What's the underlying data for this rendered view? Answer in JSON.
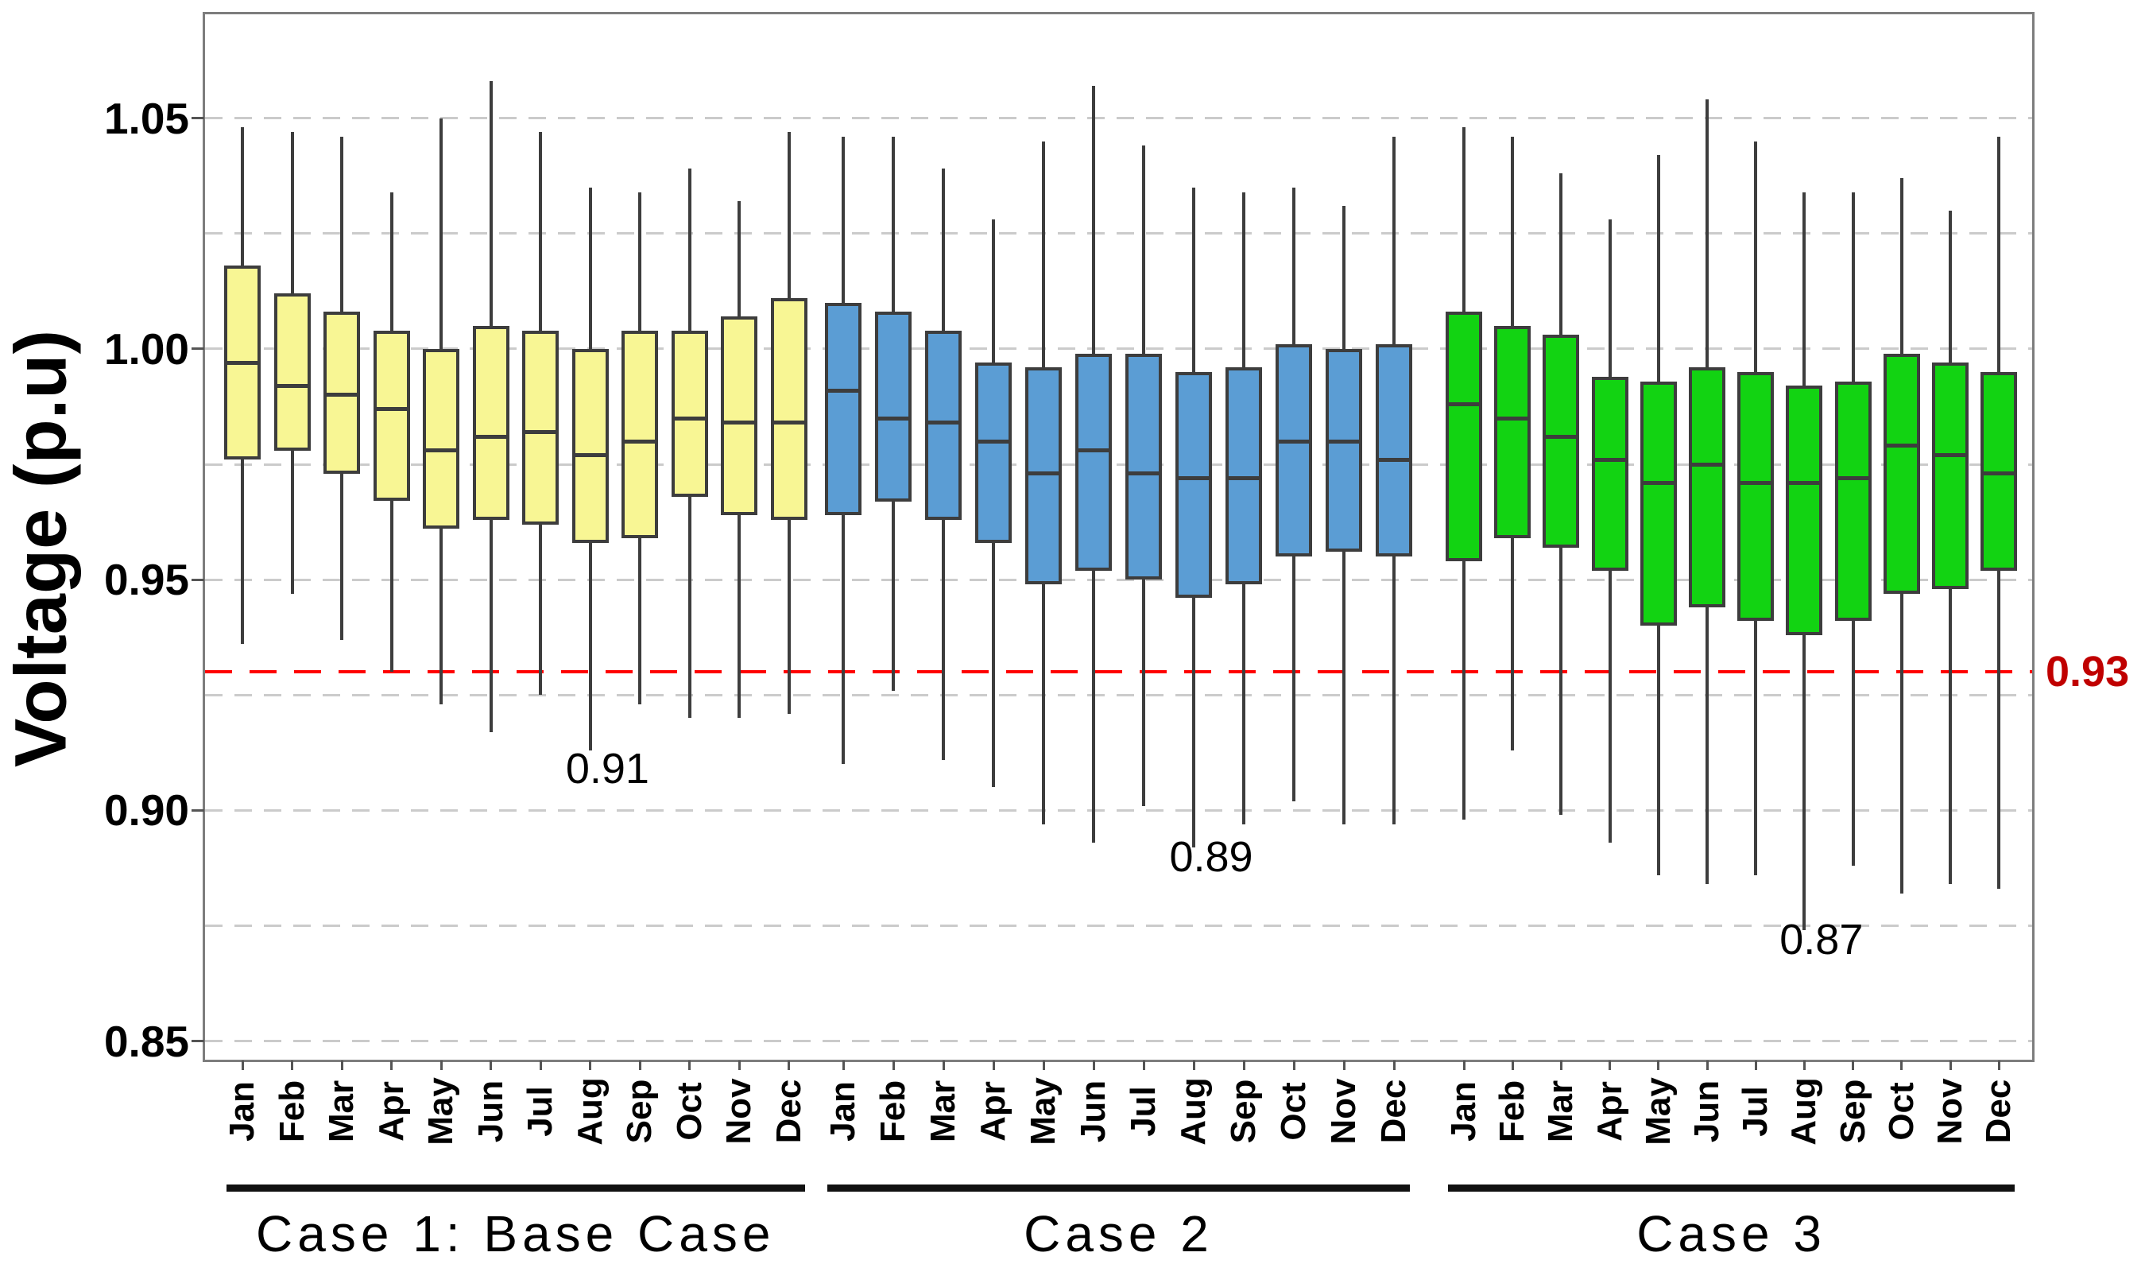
{
  "chart_data": {
    "type": "box",
    "title": "",
    "ylabel": "Voltage (p.u)",
    "ylim": [
      0.846,
      1.0725
    ],
    "grid": true,
    "gridlines": [
      1.05,
      1.025,
      1.0,
      0.975,
      0.95,
      0.925,
      0.9,
      0.875,
      0.85
    ],
    "yticks": [
      {
        "label": "1.05",
        "value": 1.05
      },
      {
        "label": "1.00",
        "value": 1.0
      },
      {
        "label": "0.95",
        "value": 0.95
      },
      {
        "label": "0.90",
        "value": 0.9
      },
      {
        "label": "0.85",
        "value": 0.85
      }
    ],
    "months": [
      "Jan",
      "Feb",
      "Mar",
      "Apr",
      "May",
      "Jun",
      "Jul",
      "Aug",
      "Sep",
      "Oct",
      "Nov",
      "Dec"
    ],
    "threshold": {
      "value": 0.93,
      "label": "0.93",
      "line_color": "#ff0000",
      "label_color": "#c00000"
    },
    "groups": [
      {
        "label": "Case 1: Base Case",
        "fill_color": "#f8f694",
        "edge_color": "#3d3d3d",
        "boxes": [
          {
            "month": "Jan",
            "low": 0.936,
            "q1": 0.976,
            "median": 0.997,
            "q3": 1.018,
            "high": 1.048
          },
          {
            "month": "Feb",
            "low": 0.947,
            "q1": 0.978,
            "median": 0.992,
            "q3": 1.012,
            "high": 1.047
          },
          {
            "month": "Mar",
            "low": 0.937,
            "q1": 0.973,
            "median": 0.99,
            "q3": 1.008,
            "high": 1.046
          },
          {
            "month": "Apr",
            "low": 0.93,
            "q1": 0.967,
            "median": 0.987,
            "q3": 1.004,
            "high": 1.034
          },
          {
            "month": "May",
            "low": 0.923,
            "q1": 0.961,
            "median": 0.978,
            "q3": 1.0,
            "high": 1.05
          },
          {
            "month": "Jun",
            "low": 0.917,
            "q1": 0.963,
            "median": 0.981,
            "q3": 1.005,
            "high": 1.058
          },
          {
            "month": "Jul",
            "low": 0.925,
            "q1": 0.962,
            "median": 0.982,
            "q3": 1.004,
            "high": 1.047
          },
          {
            "month": "Aug",
            "low": 0.913,
            "q1": 0.958,
            "median": 0.977,
            "q3": 1.0,
            "high": 1.035
          },
          {
            "month": "Sep",
            "low": 0.923,
            "q1": 0.959,
            "median": 0.98,
            "q3": 1.004,
            "high": 1.034
          },
          {
            "month": "Oct",
            "low": 0.92,
            "q1": 0.968,
            "median": 0.985,
            "q3": 1.004,
            "high": 1.039
          },
          {
            "month": "Nov",
            "low": 0.92,
            "q1": 0.964,
            "median": 0.984,
            "q3": 1.007,
            "high": 1.032
          },
          {
            "month": "Dec",
            "low": 0.921,
            "q1": 0.963,
            "median": 0.984,
            "q3": 1.011,
            "high": 1.047
          }
        ]
      },
      {
        "label": "Case 2",
        "fill_color": "#5b9dd4",
        "edge_color": "#3d3d3d",
        "boxes": [
          {
            "month": "Jan",
            "low": 0.91,
            "q1": 0.964,
            "median": 0.991,
            "q3": 1.01,
            "high": 1.046
          },
          {
            "month": "Feb",
            "low": 0.926,
            "q1": 0.967,
            "median": 0.985,
            "q3": 1.008,
            "high": 1.046
          },
          {
            "month": "Mar",
            "low": 0.911,
            "q1": 0.963,
            "median": 0.984,
            "q3": 1.004,
            "high": 1.039
          },
          {
            "month": "Apr",
            "low": 0.905,
            "q1": 0.958,
            "median": 0.98,
            "q3": 0.997,
            "high": 1.028
          },
          {
            "month": "May",
            "low": 0.897,
            "q1": 0.949,
            "median": 0.973,
            "q3": 0.996,
            "high": 1.045
          },
          {
            "month": "Jun",
            "low": 0.893,
            "q1": 0.952,
            "median": 0.978,
            "q3": 0.999,
            "high": 1.057
          },
          {
            "month": "Jul",
            "low": 0.901,
            "q1": 0.95,
            "median": 0.973,
            "q3": 0.999,
            "high": 1.044
          },
          {
            "month": "Aug",
            "low": 0.892,
            "q1": 0.946,
            "median": 0.972,
            "q3": 0.995,
            "high": 1.035
          },
          {
            "month": "Sep",
            "low": 0.897,
            "q1": 0.949,
            "median": 0.972,
            "q3": 0.996,
            "high": 1.034
          },
          {
            "month": "Oct",
            "low": 0.902,
            "q1": 0.955,
            "median": 0.98,
            "q3": 1.001,
            "high": 1.035
          },
          {
            "month": "Nov",
            "low": 0.897,
            "q1": 0.956,
            "median": 0.98,
            "q3": 1.0,
            "high": 1.031
          },
          {
            "month": "Dec",
            "low": 0.897,
            "q1": 0.955,
            "median": 0.976,
            "q3": 1.001,
            "high": 1.046
          }
        ]
      },
      {
        "label": "Case 3",
        "fill_color": "#12d312",
        "edge_color": "#3d3d3d",
        "boxes": [
          {
            "month": "Jan",
            "low": 0.898,
            "q1": 0.954,
            "median": 0.988,
            "q3": 1.008,
            "high": 1.048
          },
          {
            "month": "Feb",
            "low": 0.913,
            "q1": 0.959,
            "median": 0.985,
            "q3": 1.005,
            "high": 1.046
          },
          {
            "month": "Mar",
            "low": 0.899,
            "q1": 0.957,
            "median": 0.981,
            "q3": 1.003,
            "high": 1.038
          },
          {
            "month": "Apr",
            "low": 0.893,
            "q1": 0.952,
            "median": 0.976,
            "q3": 0.994,
            "high": 1.028
          },
          {
            "month": "May",
            "low": 0.886,
            "q1": 0.94,
            "median": 0.971,
            "q3": 0.993,
            "high": 1.042
          },
          {
            "month": "Jun",
            "low": 0.884,
            "q1": 0.944,
            "median": 0.975,
            "q3": 0.996,
            "high": 1.054
          },
          {
            "month": "Jul",
            "low": 0.886,
            "q1": 0.941,
            "median": 0.971,
            "q3": 0.995,
            "high": 1.045
          },
          {
            "month": "Aug",
            "low": 0.874,
            "q1": 0.938,
            "median": 0.971,
            "q3": 0.992,
            "high": 1.034
          },
          {
            "month": "Sep",
            "low": 0.888,
            "q1": 0.941,
            "median": 0.972,
            "q3": 0.993,
            "high": 1.034
          },
          {
            "month": "Oct",
            "low": 0.882,
            "q1": 0.947,
            "median": 0.979,
            "q3": 0.999,
            "high": 1.037
          },
          {
            "month": "Nov",
            "low": 0.884,
            "q1": 0.948,
            "median": 0.977,
            "q3": 0.997,
            "high": 1.03
          },
          {
            "month": "Dec",
            "low": 0.883,
            "q1": 0.952,
            "median": 0.973,
            "q3": 0.995,
            "high": 1.046
          }
        ]
      }
    ],
    "annotations": [
      {
        "text": "0.91",
        "group": 0,
        "anchor_month": "Aug",
        "y_value": 0.909
      },
      {
        "text": "0.89",
        "group": 1,
        "anchor_month": "Aug",
        "y_value": 0.89
      },
      {
        "text": "0.87",
        "group": 2,
        "anchor_month": "Aug",
        "y_value": 0.872
      }
    ],
    "legend": null
  }
}
